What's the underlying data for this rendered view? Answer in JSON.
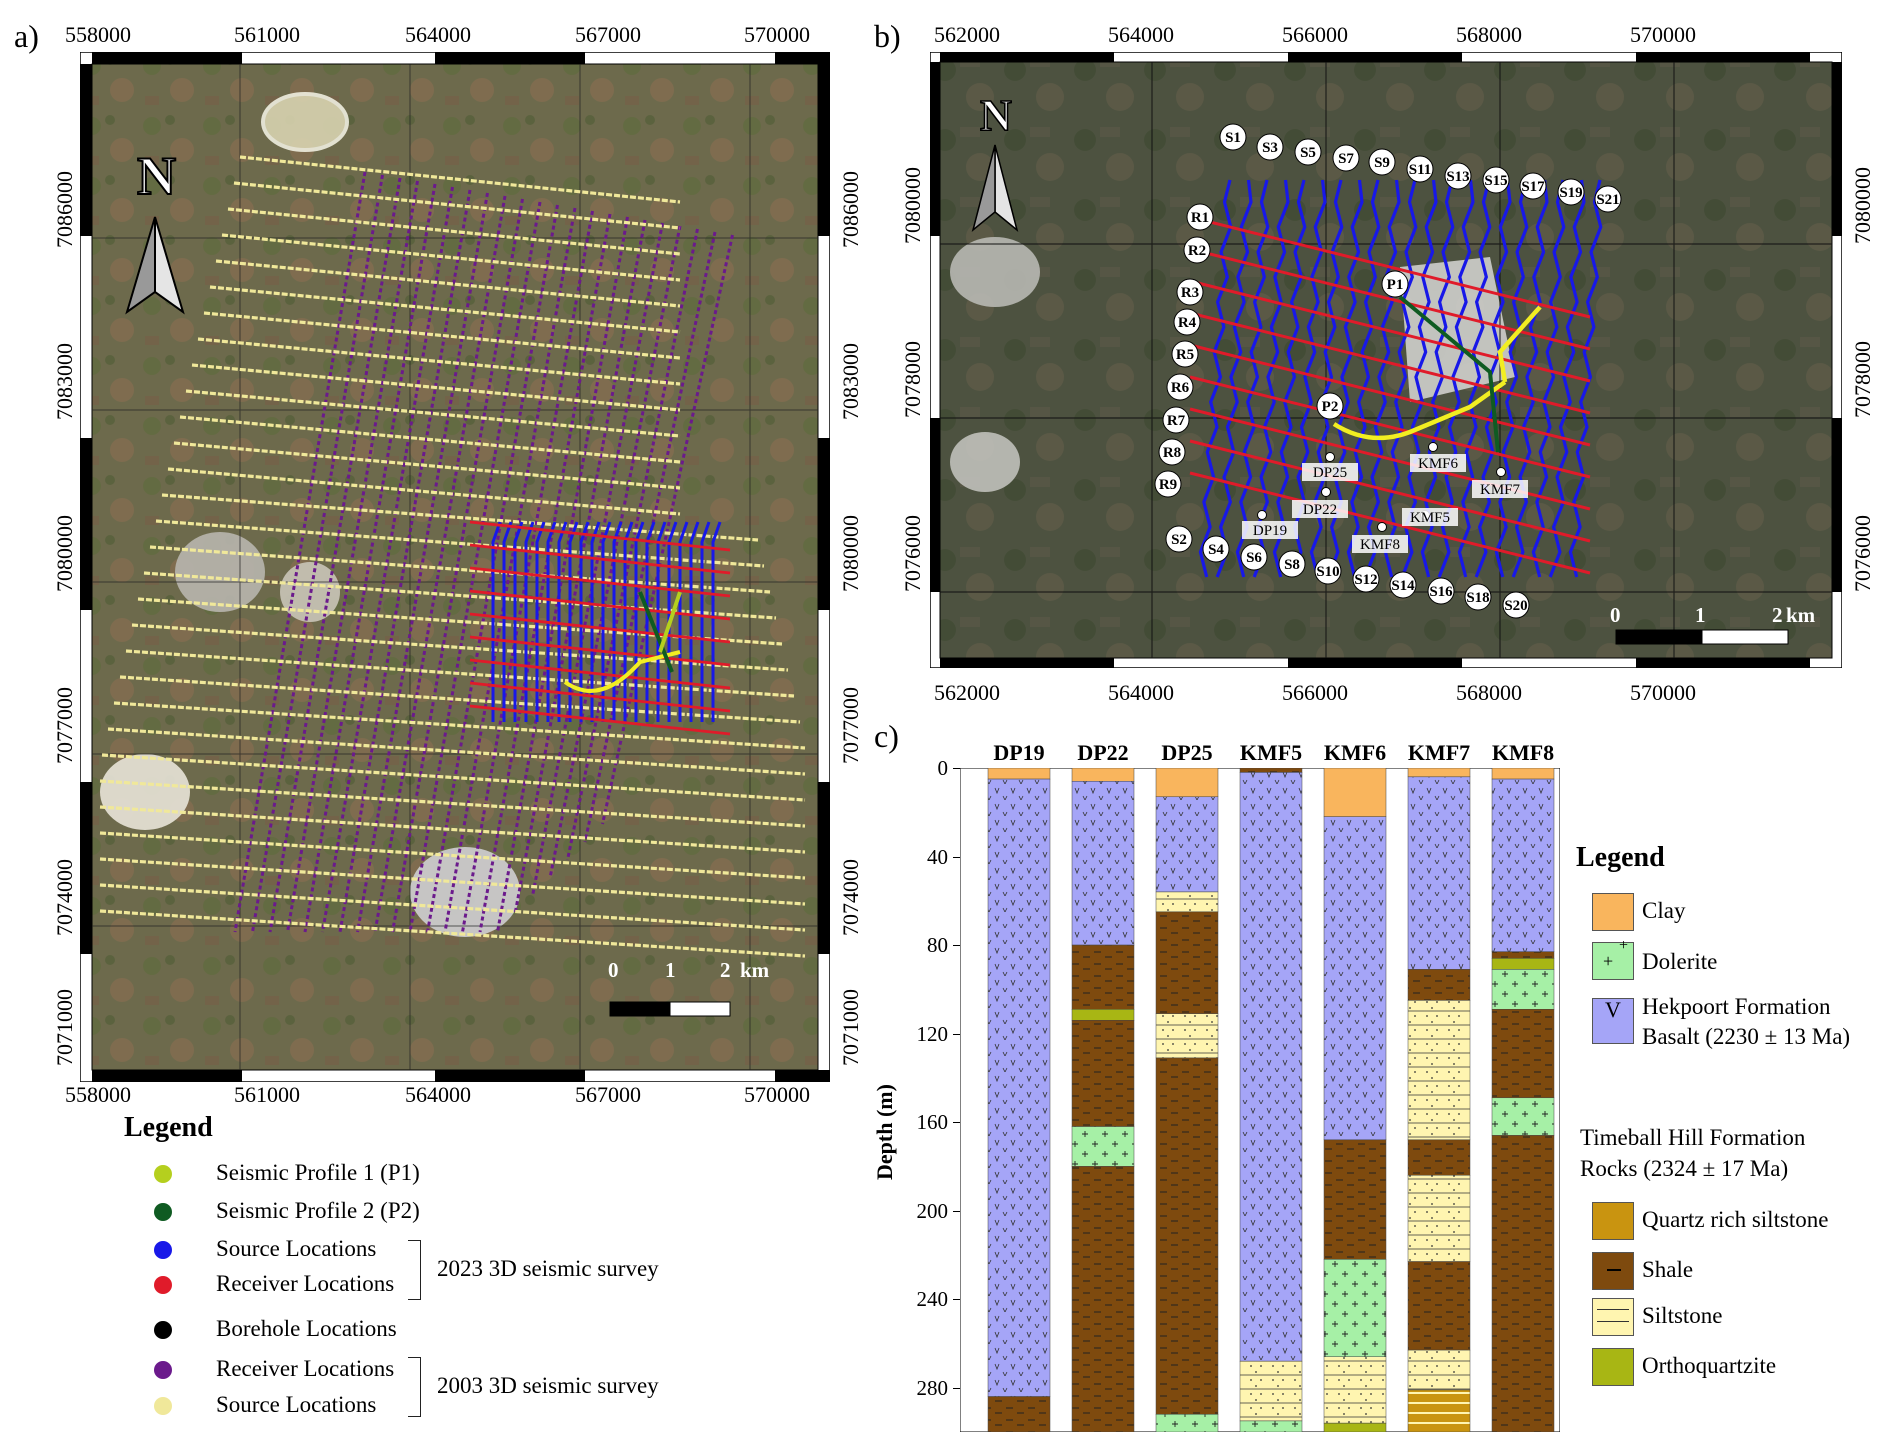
{
  "panels": {
    "a": "a)",
    "b": "b)",
    "c": "c)"
  },
  "map_a": {
    "x_ticks": [
      "558000",
      "561000",
      "564000",
      "567000",
      "570000"
    ],
    "y_ticks": [
      "7086000",
      "7083000",
      "7080000",
      "7077000",
      "7074000",
      "7071000"
    ],
    "north": "N",
    "scale": {
      "labels": [
        "0",
        "1",
        "2",
        "km"
      ]
    }
  },
  "map_b": {
    "x_ticks": [
      "562000",
      "564000",
      "566000",
      "568000",
      "570000"
    ],
    "y_ticks": [
      "7080000",
      "7078000",
      "7076000"
    ],
    "north": "N",
    "scale": {
      "labels": [
        "0",
        "1",
        "2",
        "km"
      ]
    },
    "source_lines": [
      "S1",
      "S2",
      "S3",
      "S4",
      "S5",
      "S6",
      "S7",
      "S8",
      "S9",
      "S10",
      "S11",
      "S12",
      "S13",
      "S14",
      "S15",
      "S16",
      "S17",
      "S18",
      "S19",
      "S20",
      "S21"
    ],
    "receiver_lines": [
      "R1",
      "R2",
      "R3",
      "R4",
      "R5",
      "R6",
      "R7",
      "R8",
      "R9"
    ],
    "profiles": [
      "P1",
      "P2"
    ],
    "boreholes": [
      "DP25",
      "DP22",
      "DP19",
      "KMF6",
      "KMF7",
      "KMF5",
      "KMF8"
    ]
  },
  "legend_a": {
    "title": "Legend",
    "items": [
      {
        "label": "Seismic Profile 1 (P1)",
        "color": "#b5cf1e"
      },
      {
        "label": "Seismic Profile 2 (P2)",
        "color": "#0f5b22"
      },
      {
        "label": "Source Locations",
        "color": "#1818e8"
      },
      {
        "label": "Receiver Locations",
        "color": "#e01b2a"
      },
      {
        "label": "Borehole Locations",
        "color": "#000000"
      },
      {
        "label": "Receiver Locations",
        "color": "#6b1a8c"
      },
      {
        "label": "Source Locations",
        "color": "#f0e89a"
      }
    ],
    "group_2023": "2023 3D seismic survey",
    "group_2003": "2003 3D seismic survey"
  },
  "chart": {
    "ylabel": "Depth (m)",
    "yticks": [
      "0",
      "40",
      "80",
      "120",
      "160",
      "200",
      "240",
      "280"
    ]
  },
  "legend_c": {
    "title": "Legend",
    "clay": "Clay",
    "dolerite": "Dolerite",
    "hekpoort_1": "Hekpoort Formation",
    "hekpoort_2": "Basalt (2230 ± 13 Ma)",
    "timeball_1": "Timeball Hill Formation",
    "timeball_2": "Rocks (2324 ± 17 Ma)",
    "quartz": "Quartz rich siltstone",
    "shale": "Shale",
    "siltstone": "Siltstone",
    "orthoquartzite": "Orthoquartzite"
  },
  "lith_colors": {
    "clay": "#f9b55d",
    "dolerite": "#a6f0a6",
    "basalt": "#a5a5f7",
    "quartz": "#c99410",
    "shale": "#7e4a0e",
    "siltstone": "#fff5b0",
    "ortho": "#a8b614"
  },
  "chart_data": {
    "type": "table",
    "ylabel": "Depth (m)",
    "ylim": [
      0,
      300
    ],
    "boreholes": [
      {
        "name": "DP19",
        "layers": [
          {
            "lith": "clay",
            "top": 0,
            "bottom": 5
          },
          {
            "lith": "basalt",
            "top": 5,
            "bottom": 284
          },
          {
            "lith": "shale",
            "top": 284,
            "bottom": 300
          }
        ]
      },
      {
        "name": "DP22",
        "layers": [
          {
            "lith": "clay",
            "top": 0,
            "bottom": 6
          },
          {
            "lith": "basalt",
            "top": 6,
            "bottom": 80
          },
          {
            "lith": "shale",
            "top": 80,
            "bottom": 109
          },
          {
            "lith": "ortho",
            "top": 109,
            "bottom": 114
          },
          {
            "lith": "shale",
            "top": 114,
            "bottom": 162
          },
          {
            "lith": "dolerite",
            "top": 162,
            "bottom": 180
          },
          {
            "lith": "shale",
            "top": 180,
            "bottom": 300
          }
        ]
      },
      {
        "name": "DP25",
        "layers": [
          {
            "lith": "clay",
            "top": 0,
            "bottom": 13
          },
          {
            "lith": "basalt",
            "top": 13,
            "bottom": 56
          },
          {
            "lith": "siltstone",
            "top": 56,
            "bottom": 65
          },
          {
            "lith": "shale",
            "top": 65,
            "bottom": 111
          },
          {
            "lith": "siltstone",
            "top": 111,
            "bottom": 131
          },
          {
            "lith": "shale",
            "top": 131,
            "bottom": 292
          },
          {
            "lith": "dolerite",
            "top": 292,
            "bottom": 300
          }
        ]
      },
      {
        "name": "KMF5",
        "layers": [
          {
            "lith": "shale",
            "top": 0,
            "bottom": 2
          },
          {
            "lith": "basalt",
            "top": 2,
            "bottom": 268
          },
          {
            "lith": "siltstone",
            "top": 268,
            "bottom": 295
          },
          {
            "lith": "dolerite",
            "top": 295,
            "bottom": 300
          }
        ]
      },
      {
        "name": "KMF6",
        "layers": [
          {
            "lith": "clay",
            "top": 0,
            "bottom": 22
          },
          {
            "lith": "basalt",
            "top": 22,
            "bottom": 168
          },
          {
            "lith": "shale",
            "top": 168,
            "bottom": 222
          },
          {
            "lith": "dolerite",
            "top": 222,
            "bottom": 266
          },
          {
            "lith": "siltstone",
            "top": 266,
            "bottom": 296
          },
          {
            "lith": "ortho",
            "top": 296,
            "bottom": 300
          }
        ]
      },
      {
        "name": "KMF7",
        "layers": [
          {
            "lith": "clay",
            "top": 0,
            "bottom": 4
          },
          {
            "lith": "basalt",
            "top": 4,
            "bottom": 91
          },
          {
            "lith": "shale",
            "top": 91,
            "bottom": 105
          },
          {
            "lith": "siltstone",
            "top": 105,
            "bottom": 168
          },
          {
            "lith": "shale",
            "top": 168,
            "bottom": 184
          },
          {
            "lith": "siltstone",
            "top": 184,
            "bottom": 223
          },
          {
            "lith": "shale",
            "top": 223,
            "bottom": 263
          },
          {
            "lith": "siltstone",
            "top": 263,
            "bottom": 281
          },
          {
            "lith": "quartz",
            "top": 281,
            "bottom": 300
          }
        ]
      },
      {
        "name": "KMF8",
        "layers": [
          {
            "lith": "clay",
            "top": 0,
            "bottom": 5
          },
          {
            "lith": "basalt",
            "top": 5,
            "bottom": 83
          },
          {
            "lith": "shale",
            "top": 83,
            "bottom": 86
          },
          {
            "lith": "ortho",
            "top": 86,
            "bottom": 91
          },
          {
            "lith": "dolerite",
            "top": 91,
            "bottom": 109
          },
          {
            "lith": "shale",
            "top": 109,
            "bottom": 149
          },
          {
            "lith": "dolerite",
            "top": 149,
            "bottom": 166
          },
          {
            "lith": "shale",
            "top": 166,
            "bottom": 300
          }
        ]
      }
    ]
  }
}
